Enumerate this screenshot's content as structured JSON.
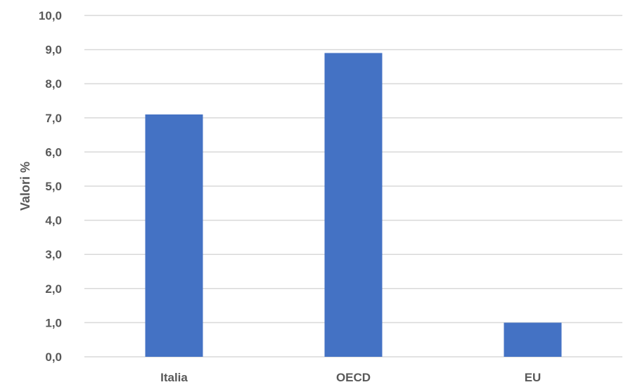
{
  "chart_data": {
    "type": "bar",
    "categories": [
      "Italia",
      "OECD",
      "EU"
    ],
    "values": [
      7.1,
      8.9,
      1.0
    ],
    "title": "",
    "xlabel": "",
    "ylabel": "Valori %",
    "ylim": [
      0,
      10
    ],
    "yticks": [
      "0,0",
      "1,0",
      "2,0",
      "3,0",
      "4,0",
      "5,0",
      "6,0",
      "7,0",
      "8,0",
      "9,0",
      "10,0"
    ],
    "grid": true,
    "legend": "none",
    "bar_color": "#4472C4"
  }
}
